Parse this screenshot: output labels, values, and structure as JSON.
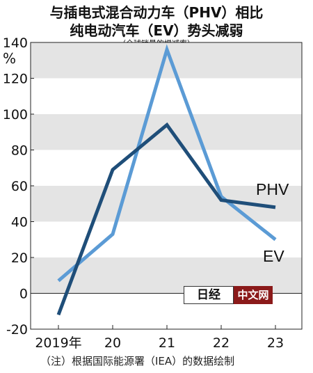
{
  "header": {
    "title_line1": "与插电式混合动力车（PHV）相比",
    "title_line2": "纯电动汽车（EV）势头减弱",
    "subtitle": "（全球销量的增减率）"
  },
  "y_unit": "%",
  "footnote": "（注）根据国际能源署（IEA）的数据绘制",
  "watermark": {
    "left": "日经",
    "right": "中文网"
  },
  "colors": {
    "PHV": "#1f4e79",
    "EV": "#5b9bd5",
    "band": "#e4e4e4"
  },
  "chart_data": {
    "type": "line",
    "title": "与插电式混合动力车（PHV）相比 纯电动汽车（EV）势头减弱",
    "subtitle": "（全球销量的增减率）",
    "ylabel": "%",
    "xlabel": "",
    "categories": [
      "2019年",
      "20",
      "21",
      "22",
      "23"
    ],
    "ylim": [
      -20,
      140
    ],
    "yticks": [
      -20,
      0,
      20,
      40,
      60,
      80,
      100,
      120,
      140
    ],
    "grid": "alternating horizontal bands",
    "series": [
      {
        "name": "PHV",
        "values": [
          -12,
          69,
          94,
          52,
          48
        ]
      },
      {
        "name": "EV",
        "values": [
          7,
          33,
          136,
          54,
          30
        ]
      }
    ]
  }
}
